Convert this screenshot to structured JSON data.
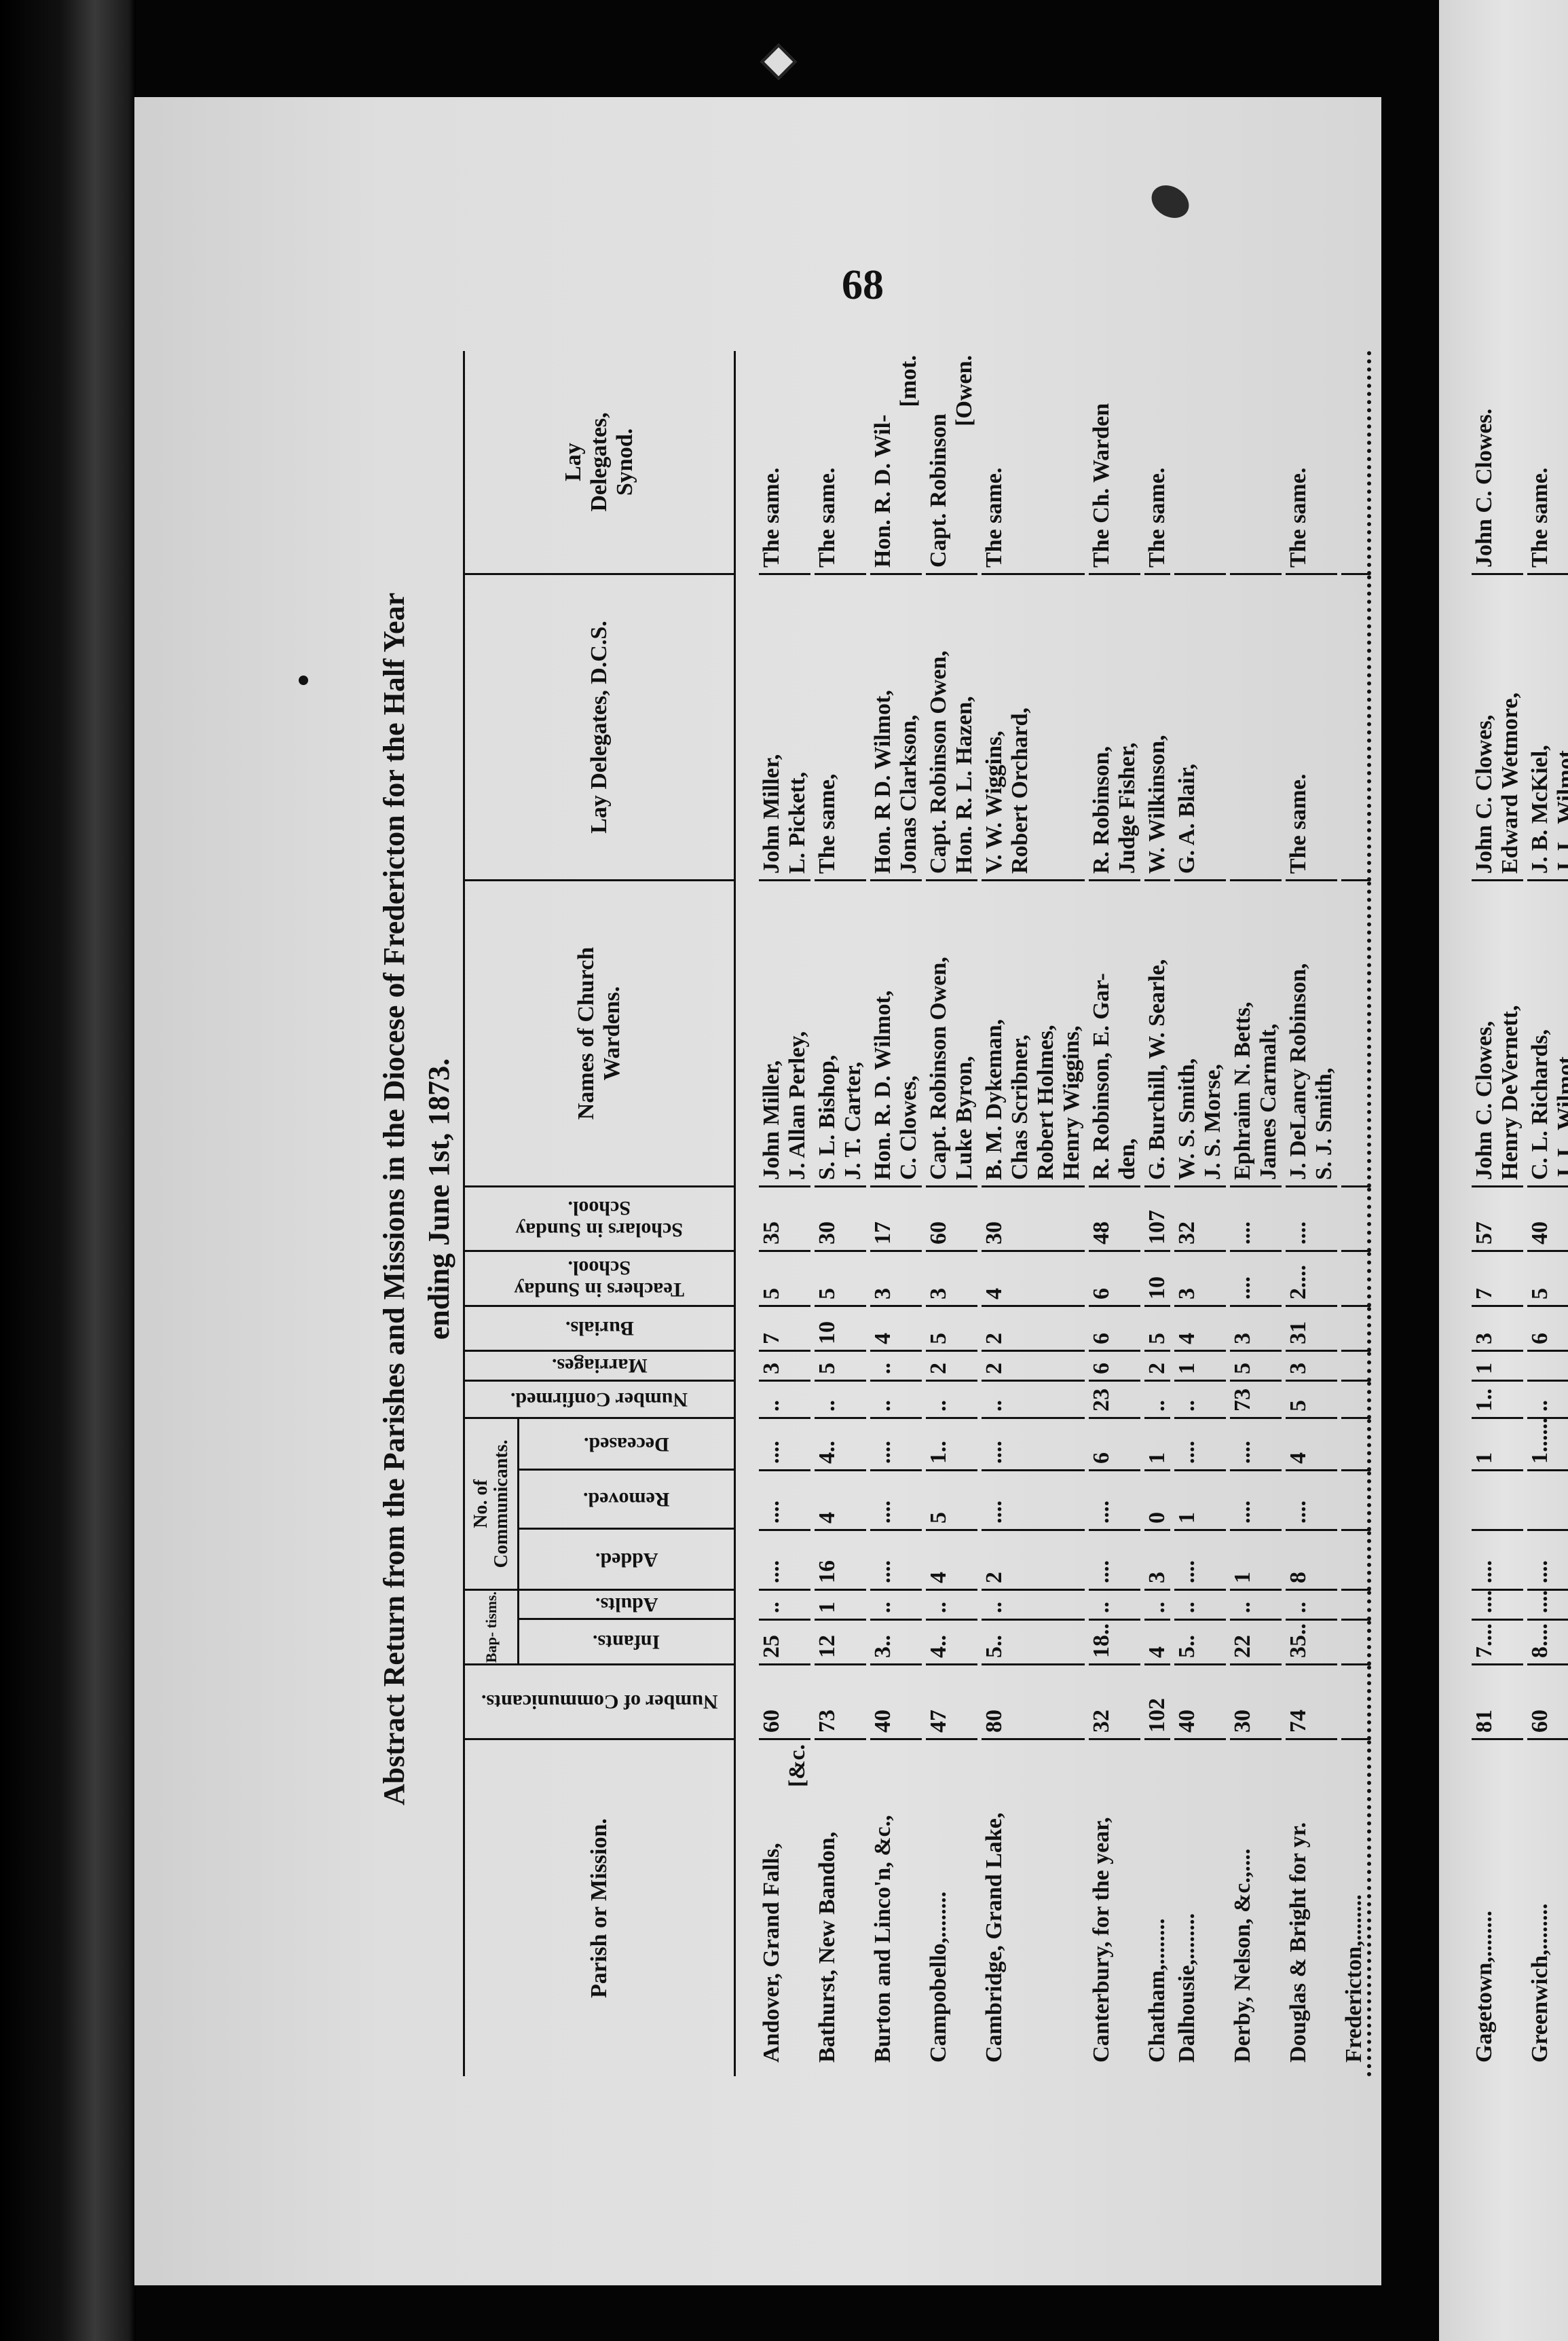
{
  "page_number": "68",
  "title": {
    "line1": "Abstract Return from the Parishes and Missions in the Diocese of Fredericton for the Half Year",
    "line2": "ending June 1st, 1873."
  },
  "header": {
    "parish": "Parish or Mission.",
    "communicants": "Number of Communicants.",
    "baptisms": "Bap- tisms.",
    "infants": "Infants.",
    "adults": "Adults.",
    "no_communicants": "No. of Communicants.",
    "added": "Added.",
    "removed": "Removed.",
    "deceased": "Deceased.",
    "confirmed": "Number Confirmed.",
    "marriages": "Marriages.",
    "burials": "Burials.",
    "teachers": "Teachers in Sunday School.",
    "scholars": "Scholars in Sunday School.",
    "wardens": "Names of Church Wardens.",
    "dcs": "Lay Delegates, D.C.S.",
    "synod": "Lay Delegates, Synod."
  },
  "rows": [
    {
      "parish": [
        "Andover, Grand Falls,",
        "[&c."
      ],
      "communicants": "60",
      "infants": "25",
      "adults": "..",
      "added": "....",
      "removed": "....",
      "deceased": "....",
      "confirmed": "..",
      "marriages": "3",
      "burials": "7",
      "teachers": "5",
      "scholars": "35",
      "wardens": [
        "John Miller,",
        "J. Allan Perley,"
      ],
      "dcs": [
        "John Miller,",
        "L. Pickett,"
      ],
      "synod": [
        "The same."
      ]
    },
    {
      "parish": [
        "Bathurst, New Bandon,"
      ],
      "communicants": "73",
      "infants": "12",
      "adults": "1",
      "added": "16",
      "removed": "4",
      "deceased": "4..",
      "confirmed": "..",
      "marriages": "5",
      "burials": "10",
      "teachers": "5",
      "scholars": "30",
      "wardens": [
        "S. L. Bishop,",
        "J. T. Carter,"
      ],
      "dcs": [
        "The same,"
      ],
      "synod": [
        "The same."
      ]
    },
    {
      "parish": [
        "Burton and Linco'n, &c.,"
      ],
      "communicants": "40",
      "infants": "3..",
      "adults": "..",
      "added": "....",
      "removed": "....",
      "deceased": "....",
      "confirmed": "..",
      "marriages": "..",
      "burials": "4",
      "teachers": "3",
      "scholars": "17",
      "wardens": [
        "Hon. R. D. Wilmot,",
        "C. Clowes,"
      ],
      "dcs": [
        "Hon. R D. Wilmot,",
        "Jonas Clarkson,"
      ],
      "synod": [
        "Hon. R. D. Wil-",
        "[mot."
      ]
    },
    {
      "parish": [
        "Campobello,........"
      ],
      "communicants": "47",
      "infants": "4..",
      "adults": "..",
      "added": "4",
      "removed": "5",
      "deceased": "1..",
      "confirmed": "..",
      "marriages": "2",
      "burials": "5",
      "teachers": "3",
      "scholars": "60",
      "wardens": [
        "Capt. Robinson Owen,",
        "Luke Byron,"
      ],
      "dcs": [
        "Capt. Robinson Owen,",
        "Hon. R. L. Hazen,"
      ],
      "synod": [
        "Capt. Robinson",
        "[Owen."
      ]
    },
    {
      "parish": [
        "Cambridge, Grand Lake,"
      ],
      "communicants": "80",
      "infants": "5..",
      "adults": "..",
      "added": "2",
      "removed": "....",
      "deceased": "....",
      "confirmed": "..",
      "marriages": "2",
      "burials": "2",
      "teachers": "4",
      "scholars": "30",
      "wardens": [
        "B. M. Dykeman,",
        "Chas Scribner,",
        "Robert Holmes,",
        "Henry Wiggins,"
      ],
      "dcs": [
        "V. W. Wiggins,",
        "Robert Orchard,"
      ],
      "synod": [
        "The same."
      ]
    },
    {
      "parish": [
        "Canterbury, for the year,"
      ],
      "communicants": "32",
      "infants": "18..",
      "adults": "..",
      "added": "....",
      "removed": "....",
      "deceased": "6",
      "confirmed": "23",
      "marriages": "6",
      "burials": "6",
      "teachers": "6",
      "scholars": "48",
      "wardens": [
        "R. Robinson, E. Gar-",
        "den,"
      ],
      "dcs": [
        "R. Robinson,",
        "Judge Fisher,"
      ],
      "synod": [
        "The Ch. Warden"
      ]
    },
    {
      "parish": [
        "Chatham,........"
      ],
      "communicants": "102",
      "infants": "4",
      "adults": "..",
      "added": "3",
      "removed": "0",
      "deceased": "1",
      "confirmed": "..",
      "marriages": "2",
      "burials": "5",
      "teachers": "10",
      "scholars": "107",
      "wardens": [
        "G. Burchill, W. Searle,"
      ],
      "dcs": [
        "W. Wilkinson,"
      ],
      "synod": [
        "The same."
      ]
    },
    {
      "parish": [
        "Dalhousie,........"
      ],
      "communicants": "40",
      "infants": "5..",
      "adults": "..",
      "added": "....",
      "removed": "1",
      "deceased": "....",
      "confirmed": "..",
      "marriages": "1",
      "burials": "4",
      "teachers": "3",
      "scholars": "32",
      "wardens": [
        "W. S. Smith,",
        "J. S. Morse,"
      ],
      "dcs": [
        "G. A. Blair,"
      ],
      "synod": [
        ""
      ]
    },
    {
      "parish": [
        "Derby, Nelson, &c.,...."
      ],
      "communicants": "30",
      "infants": "22",
      "adults": "..",
      "added": "1",
      "removed": "....",
      "deceased": "....",
      "confirmed": "73",
      "marriages": "5",
      "burials": "3",
      "teachers": "....",
      "scholars": "....",
      "wardens": [
        "Ephraim N. Betts,",
        "James Carmalt,"
      ],
      "dcs": [
        ""
      ],
      "synod": [
        ""
      ]
    },
    {
      "parish": [
        "Douglas & Bright for yr."
      ],
      "communicants": "74",
      "infants": "35..",
      "adults": "..",
      "added": "8",
      "removed": "....",
      "deceased": "4",
      "confirmed": "5",
      "marriages": "3",
      "burials": "31",
      "teachers": "2....",
      "scholars": "....",
      "wardens": [
        "J. DeLancy Robinson,",
        "S. J. Smith,"
      ],
      "dcs": [
        "The same."
      ],
      "synod": [
        "The same."
      ]
    },
    {
      "parish": [
        "Fredericton,........"
      ],
      "communicants": "",
      "infants": "",
      "adults": "",
      "added": "",
      "removed": "",
      "deceased": "",
      "confirmed": "",
      "marriages": "",
      "burials": "",
      "teachers": "",
      "scholars": "",
      "wardens": [
        ""
      ],
      "dcs": [
        ""
      ],
      "synod": [
        ""
      ]
    }
  ],
  "next_page_rows": [
    {
      "parish": [
        "Gagetown,........"
      ],
      "communicants": "81",
      "infants": "7....",
      "adults": "....",
      "added": "....",
      "removed": "",
      "deceased": "1",
      "confirmed": "1..",
      "marriages": "1",
      "burials": "3",
      "teachers": "7",
      "scholars": "57",
      "wardens": [
        "John C. Clowes,",
        "Henry DeVernett,"
      ],
      "dcs": [
        "John C. Clowes,",
        "Edward Wetmore,"
      ],
      "synod": [
        "John C. Clowes."
      ]
    },
    {
      "parish": [
        "Greenwich,........"
      ],
      "communicants": "60",
      "infants": "8....",
      "adults": "....",
      "added": "....",
      "removed": "",
      "deceased": "1......",
      "confirmed": "..",
      "marriages": "",
      "burials": "6",
      "teachers": "5",
      "scholars": "40",
      "wardens": [
        "C. L. Richards,",
        "J. L. Wilmot,"
      ],
      "dcs": [
        "J. B. McKiel,",
        "J. L. Wilmot,"
      ],
      "synod": [
        "The same."
      ]
    }
  ]
}
